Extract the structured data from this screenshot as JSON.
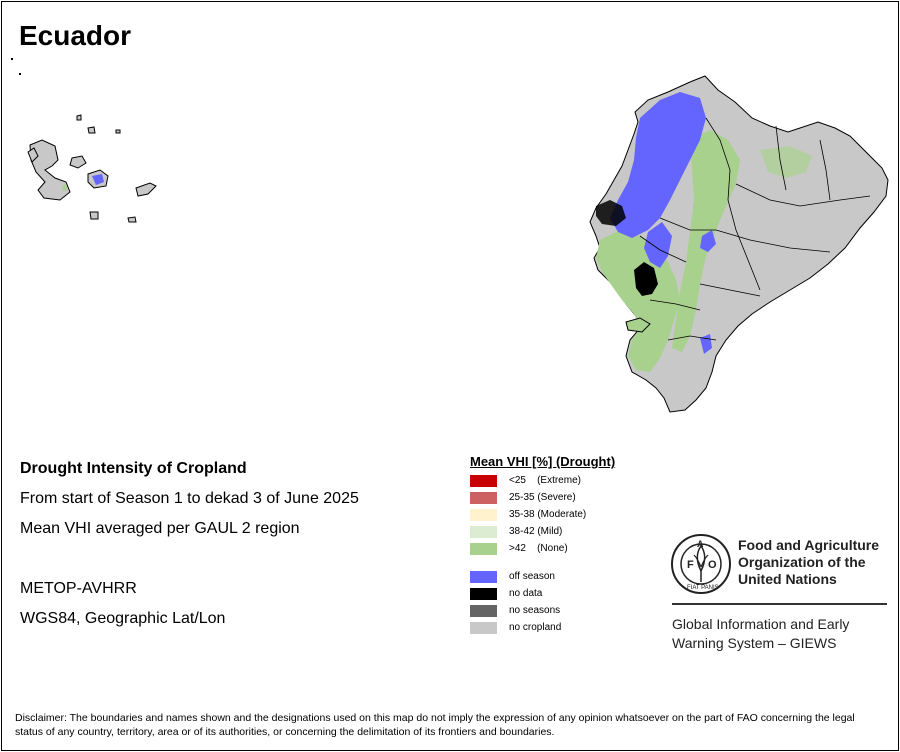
{
  "map": {
    "title": "Ecuador"
  },
  "info": {
    "line1": "Drought Intensity of Cropland",
    "line2": "From start of Season 1 to dekad 3 of June 2025",
    "line3": "Mean VHI averaged per GAUL 2 region",
    "sensor": "METOP-AVHRR",
    "projection": "WGS84, Geographic Lat/Lon"
  },
  "legend": {
    "title": "Mean VHI [%] (Drought)",
    "items": [
      {
        "label": "<25    (Extreme)",
        "color": "#c80000"
      },
      {
        "label": "25-35 (Severe)",
        "color": "#cd6060"
      },
      {
        "label": "35-38 (Moderate)",
        "color": "#fff2cc"
      },
      {
        "label": "38-42 (Mild)",
        "color": "#dbecd3"
      },
      {
        "label": ">42    (None)",
        "color": "#a9d18e"
      },
      {
        "label": "off season",
        "color": "#6464ff"
      },
      {
        "label": "no data",
        "color": "#000000"
      },
      {
        "label": "no seasons",
        "color": "#646464"
      },
      {
        "label": "no cropland",
        "color": "#c8c8c8"
      }
    ]
  },
  "fao": {
    "name_line1": "Food and Agriculture",
    "name_line2": "Organization of the",
    "name_line3": "United Nations",
    "emblem_text": "FIAT PANIS",
    "giews_line1": "Global Information and Early",
    "giews_line2": "Warning System – GIEWS"
  },
  "disclaimer": "Disclaimer: The boundaries and names shown and the designations used on this map do not imply the expression of any opinion whatsoever on the part of FAO concerning the legal status of any country, territory, area or of its authorities, or concerning the delimitation of its frontiers and boundaries.",
  "colors": {
    "no_cropland": "#c8c8c8",
    "off_season": "#6464ff",
    "none": "#a9d18e",
    "no_data": "#000000"
  }
}
